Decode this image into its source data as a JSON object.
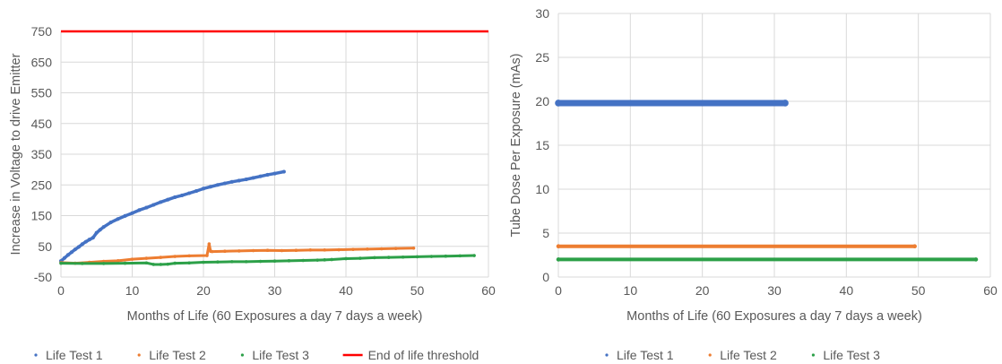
{
  "chart_data": [
    {
      "type": "scatter",
      "xlabel": "Months of Life (60 Exposures a day 7 days a week)",
      "ylabel": "Increase in Voltage to drive Emitter",
      "xlim": [
        0,
        60
      ],
      "ylim": [
        -50,
        750
      ],
      "x_ticks": [
        0,
        10,
        20,
        30,
        40,
        50,
        60
      ],
      "y_ticks": [
        -50,
        50,
        150,
        250,
        350,
        450,
        550,
        650,
        750
      ],
      "grid": true,
      "legend_position": "bottom",
      "series": [
        {
          "name": "Life Test 1",
          "color": "#4472c4",
          "marker": "dot",
          "x": [
            0,
            0.5,
            1,
            1.5,
            2,
            2.5,
            3,
            3.5,
            4,
            4.5,
            5,
            5.5,
            6,
            7,
            8,
            9,
            10,
            11,
            12,
            13,
            14,
            15,
            16,
            17,
            18,
            19,
            20,
            21,
            22,
            23,
            24,
            25,
            26,
            27,
            28,
            29,
            30,
            31.3
          ],
          "y": [
            2,
            12,
            22,
            31,
            40,
            48,
            57,
            65,
            72,
            78,
            94,
            104,
            113,
            128,
            139,
            149,
            158,
            168,
            176,
            185,
            194,
            202,
            210,
            216,
            223,
            230,
            238,
            244,
            250,
            255,
            260,
            264,
            268,
            273,
            278,
            283,
            287,
            293
          ]
        },
        {
          "name": "Life Test 2",
          "color": "#ed7d31",
          "marker": "dot",
          "x": [
            0,
            2,
            4,
            6,
            8,
            10,
            12,
            14,
            16,
            18,
            20.5,
            20.8,
            21,
            21.2,
            23,
            25,
            27,
            29,
            31,
            33,
            35,
            37,
            39,
            41,
            43,
            45,
            47,
            49.5
          ],
          "y": [
            -3,
            -5,
            -2,
            1,
            3,
            8,
            11,
            14,
            17,
            19,
            20,
            58,
            34,
            33,
            34,
            35,
            36,
            37,
            36,
            37,
            38,
            38,
            39,
            40,
            41,
            42,
            43,
            44
          ]
        },
        {
          "name": "Life Test 3",
          "color": "#2ca048",
          "marker": "dot",
          "x": [
            0,
            3,
            6,
            9,
            12,
            13,
            14,
            15,
            16,
            18,
            20,
            22,
            24,
            26,
            28,
            30,
            32,
            34,
            36,
            37,
            38,
            40,
            42,
            44,
            46,
            48,
            50,
            52,
            54,
            56,
            58
          ],
          "y": [
            -5,
            -6,
            -6,
            -5,
            -4,
            -9,
            -9,
            -8,
            -5,
            -4,
            -2,
            -1,
            0,
            0,
            1,
            2,
            3,
            4,
            5,
            6,
            7,
            10,
            11,
            13,
            14,
            15,
            16,
            17,
            18,
            19,
            20
          ]
        },
        {
          "name": "End of life threshold",
          "color": "#ff0000",
          "marker": "line",
          "x": [
            0,
            60
          ],
          "y": [
            750,
            750
          ]
        }
      ]
    },
    {
      "type": "scatter",
      "xlabel": "Months of Life (60 Exposures a day 7 days a week)",
      "ylabel": "Tube Dose Per Exposure (mAs)",
      "xlim": [
        0,
        60
      ],
      "ylim": [
        0,
        30
      ],
      "x_ticks": [
        0,
        10,
        20,
        30,
        40,
        50,
        60
      ],
      "y_ticks": [
        0,
        5,
        10,
        15,
        20,
        25,
        30
      ],
      "grid": true,
      "legend_position": "bottom",
      "series": [
        {
          "name": "Life Test 1",
          "color": "#4472c4",
          "marker": "dot",
          "x": [
            0,
            31.5
          ],
          "y": [
            19.8,
            19.8
          ]
        },
        {
          "name": "Life Test 2",
          "color": "#ed7d31",
          "marker": "dot",
          "x": [
            0,
            49.5
          ],
          "y": [
            3.5,
            3.5
          ]
        },
        {
          "name": "Life Test 3",
          "color": "#2ca048",
          "marker": "dot",
          "x": [
            0,
            58
          ],
          "y": [
            2.0,
            2.0
          ]
        }
      ]
    }
  ]
}
